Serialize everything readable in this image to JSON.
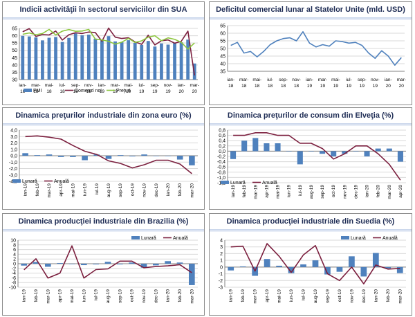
{
  "colors": {
    "bar": "#4f81bd",
    "line_primary": "#7b1f3e",
    "line_secondary": "#8dc63f",
    "line_single": "#4f81bd",
    "grid": "#d9d9d9",
    "axis": "#808080",
    "text": "#000000",
    "title": "#1f2d55"
  },
  "chart_data": [
    {
      "id": "usa-services",
      "type": "bar+line",
      "title": "Indicii activităţii în sectorul serviciilor din SUA",
      "x_labels": [
        "ian-18",
        "feb-18",
        "mar-18",
        "apr-18",
        "mai-18",
        "iun-18",
        "iul-18",
        "aug-18",
        "sep-18",
        "oct-18",
        "nov-18",
        "dec-18",
        "ian-19",
        "feb-19",
        "mar-19",
        "apr-19",
        "mai-19",
        "iun-19",
        "iul-19",
        "aug-19",
        "sep-19",
        "oct-19",
        "nov-19",
        "dec-19",
        "ian-20",
        "feb-20",
        "mar-20"
      ],
      "tick_labels": [
        "ian-18",
        "mar-18",
        "mai-18",
        "iul-18",
        "sep-18",
        "nov-18",
        "ian-19",
        "mar-19",
        "mai-19",
        "iul-19",
        "sep-19",
        "nov-19",
        "ian-20",
        "mar-20"
      ],
      "ylim": [
        30,
        65
      ],
      "yticks": [
        30,
        35,
        40,
        45,
        50,
        55,
        60,
        65
      ],
      "series": [
        {
          "name": "PMI",
          "kind": "bar",
          "values": [
            59.9,
            59.5,
            58.8,
            56.8,
            58.6,
            59.1,
            55.7,
            58.5,
            61.6,
            60.3,
            60.7,
            58.0,
            56.7,
            59.7,
            56.1,
            55.5,
            56.9,
            55.1,
            53.7,
            56.4,
            52.6,
            54.7,
            53.9,
            55.0,
            55.5,
            57.3,
            41.0
          ]
        },
        {
          "name": "Comenzi noi",
          "kind": "line",
          "color_key": "line_primary",
          "values": [
            62.7,
            64.8,
            59.5,
            60.8,
            60.5,
            63.2,
            57.0,
            60.7,
            62.0,
            61.5,
            62.5,
            62.1,
            56.2,
            65.2,
            59.0,
            58.1,
            58.6,
            55.8,
            54.1,
            60.3,
            53.7,
            56.6,
            57.1,
            54.9,
            56.2,
            63.1,
            32.9
          ]
        },
        {
          "name": "Preţuri",
          "kind": "line",
          "color_key": "line_secondary",
          "values": [
            61.0,
            61.9,
            60.7,
            61.5,
            64.3,
            60.5,
            63.1,
            64.2,
            63.0,
            63.2,
            64.3,
            57.6,
            57.1,
            56.2,
            54.2,
            55.6,
            58.2,
            55.4,
            56.5,
            59.0,
            60.0,
            56.6,
            58.5,
            57.5,
            55.5,
            50.8,
            55.0
          ]
        }
      ],
      "legend": "bottom"
    },
    {
      "id": "usa-trade",
      "type": "line",
      "title": "Deficitul comercial lunar al Statelor Unite (mld. USD)",
      "x_labels": [
        "ian-18",
        "feb-18",
        "mar-18",
        "apr-18",
        "mai-18",
        "iun-18",
        "iul-18",
        "aug-18",
        "sep-18",
        "oct-18",
        "nov-18",
        "dec-18",
        "ian-19",
        "feb-19",
        "mar-19",
        "apr-19",
        "mai-19",
        "iun-19",
        "iul-19",
        "aug-19",
        "sep-19",
        "oct-19",
        "nov-19",
        "dec-19",
        "ian-20",
        "feb-20",
        "mar-20"
      ],
      "tick_labels": [
        "ian-18",
        "mar-18",
        "mai-18",
        "iul-18",
        "sep-18",
        "nov-18",
        "ian-19",
        "mar-19",
        "mai-19",
        "iul-19",
        "sep-19",
        "nov-19",
        "ian-20",
        "mar-20"
      ],
      "ylim": [
        35,
        65
      ],
      "yticks": [
        35,
        40,
        45,
        50,
        55,
        60,
        65
      ],
      "series": [
        {
          "name": "Deficit",
          "kind": "line",
          "color_key": "line_single",
          "values": [
            52.0,
            54.0,
            47.0,
            48.0,
            44.5,
            48.0,
            52.5,
            55.0,
            56.5,
            57.0,
            55.0,
            61.0,
            53.5,
            51.0,
            52.5,
            51.5,
            55.0,
            54.5,
            53.5,
            54.0,
            52.0,
            47.0,
            43.5,
            48.5,
            45.0,
            39.0,
            44.0
          ]
        }
      ]
    },
    {
      "id": "euro-producer",
      "type": "bar+line",
      "title": "Dinamica preţurilor industriale din zona euro (%)",
      "x_labels": [
        "ian-19",
        "feb-19",
        "mar-19",
        "apr-19",
        "mai-19",
        "iun-19",
        "iul-19",
        "aug-19",
        "sep-19",
        "oct-19",
        "nov-19",
        "dec-19",
        "ian-20",
        "feb-20",
        "mar-20"
      ],
      "tick_labels": [
        "ian-19",
        "feb-19",
        "mar-19",
        "apr-19",
        "mai-19",
        "iun-19",
        "iul-19",
        "aug-19",
        "sep-19",
        "oct-19",
        "nov-19",
        "dec-19",
        "ian-20",
        "feb-20",
        "mar-20"
      ],
      "ylim": [
        -4,
        4
      ],
      "yticks": [
        -4.0,
        -3.0,
        -2.0,
        -1.0,
        0.0,
        1.0,
        2.0,
        3.0,
        4.0
      ],
      "decimals": 1,
      "series": [
        {
          "name": "Lunară",
          "kind": "bar",
          "values": [
            0.4,
            0.1,
            0.2,
            -0.2,
            -0.2,
            -0.7,
            0.2,
            -0.5,
            0.1,
            -0.1,
            0.2,
            0.0,
            0.0,
            -0.6,
            -1.5
          ]
        },
        {
          "name": "Anuală",
          "kind": "line",
          "color_key": "line_primary",
          "values": [
            3.0,
            3.1,
            2.9,
            2.6,
            1.6,
            0.7,
            0.2,
            -0.8,
            -1.2,
            -1.9,
            -1.4,
            -0.7,
            -0.7,
            -1.3,
            -2.8
          ]
        }
      ],
      "legend": "bottom-left"
    },
    {
      "id": "swiss-cpi",
      "type": "bar+line",
      "title": "Dinamica preţurilor de consum din Elveţia (%)",
      "x_labels": [
        "ian-19",
        "feb-19",
        "mar-19",
        "apr-19",
        "mai-19",
        "iun-19",
        "iul-19",
        "aug-19",
        "sep-19",
        "oct-19",
        "nov-19",
        "dec-19",
        "ian-20",
        "feb-20",
        "mar-20",
        "apr-20"
      ],
      "tick_labels": [
        "ian-19",
        "feb-19",
        "mar-19",
        "apr-19",
        "mai-19",
        "iun-19",
        "iul-19",
        "aug-19",
        "sep-19",
        "oct-19",
        "nov-19",
        "dec-19",
        "ian-20",
        "feb-20",
        "mar-20",
        "apr-20"
      ],
      "ylim": [
        -1.2,
        0.8
      ],
      "yticks": [
        -1.2,
        -1.0,
        -0.8,
        -0.6,
        -0.4,
        -0.2,
        0.0,
        0.2,
        0.4,
        0.6,
        0.8
      ],
      "decimals": 1,
      "series": [
        {
          "name": "Lunară",
          "kind": "bar",
          "values": [
            -0.3,
            0.4,
            0.5,
            0.3,
            0.3,
            0.0,
            -0.5,
            0.0,
            -0.1,
            -0.2,
            -0.1,
            0.0,
            -0.2,
            0.1,
            0.1,
            -0.4
          ]
        },
        {
          "name": "Anuală",
          "kind": "line",
          "color_key": "line_primary",
          "values": [
            0.6,
            0.6,
            0.7,
            0.7,
            0.6,
            0.6,
            0.3,
            0.3,
            0.1,
            -0.3,
            -0.1,
            0.2,
            0.2,
            -0.1,
            -0.5,
            -1.1
          ]
        }
      ],
      "legend": "bottom-left"
    },
    {
      "id": "brazil-industrial",
      "type": "bar+line",
      "title": "Dinamica producţiei industriale din Brazilia (%)",
      "x_labels": [
        "ian-19",
        "feb-19",
        "mar-19",
        "apr-19",
        "mai-19",
        "iun-19",
        "iul-19",
        "aug-19",
        "sep-19",
        "oct-19",
        "nov-19",
        "dec-19",
        "ian-20",
        "feb-20",
        "mar-20"
      ],
      "tick_labels": [
        "ian-19",
        "feb-19",
        "mar-19",
        "apr-19",
        "mai-19",
        "iun-19",
        "iul-19",
        "aug-19",
        "sep-19",
        "oct-19",
        "nov-19",
        "dec-19",
        "ian-20",
        "feb-20",
        "mar-20"
      ],
      "ylim": [
        -10,
        10
      ],
      "yticks": [
        -10,
        -8,
        -6,
        -4,
        -2,
        0,
        2,
        4,
        6,
        8,
        10
      ],
      "series": [
        {
          "name": "Lunară",
          "kind": "bar",
          "values": [
            -0.8,
            0.7,
            -1.3,
            0.3,
            -0.2,
            -0.6,
            -0.3,
            0.8,
            -0.3,
            0.5,
            -1.7,
            -0.7,
            1.1,
            0.5,
            -9.1
          ]
        },
        {
          "name": "Anuală",
          "kind": "line",
          "color_key": "line_primary",
          "values": [
            -2.6,
            2.1,
            -6.1,
            -4.0,
            7.6,
            -6.1,
            -2.5,
            -2.2,
            1.1,
            1.1,
            -1.7,
            -1.2,
            -0.9,
            -0.4,
            -3.8
          ]
        }
      ],
      "legend": "top-right"
    },
    {
      "id": "sweden-industrial",
      "type": "bar+line",
      "title": "Dinamica producţiei industriale din Suedia (%)",
      "x_labels": [
        "ian-19",
        "feb-19",
        "mar-19",
        "apr-19",
        "mai-19",
        "iun-19",
        "iul-19",
        "aug-19",
        "sep-19",
        "oct-19",
        "nov-19",
        "dec-19",
        "ian-20",
        "feb-20",
        "mar-20"
      ],
      "tick_labels": [
        "ian-19",
        "feb-19",
        "mar-19",
        "apr-19",
        "mai-19",
        "iun-19",
        "iul-19",
        "aug-19",
        "sep-19",
        "oct-19",
        "nov-19",
        "dec-19",
        "ian-20",
        "feb-20",
        "mar-20"
      ],
      "ylim": [
        -3,
        4
      ],
      "yticks": [
        -3,
        -2,
        -1,
        0,
        1,
        2,
        3,
        4
      ],
      "series": [
        {
          "name": "Lunară",
          "kind": "bar",
          "values": [
            -0.5,
            0.1,
            -1.3,
            1.2,
            0.2,
            -0.9,
            0.4,
            1.0,
            -1.1,
            -0.7,
            1.6,
            -1.4,
            2.1,
            -0.2,
            -0.9
          ]
        },
        {
          "name": "Anuală",
          "kind": "line",
          "color_key": "line_primary",
          "values": [
            3.0,
            3.1,
            -0.6,
            3.5,
            1.6,
            -0.8,
            1.8,
            3.2,
            -1.0,
            -2.0,
            0.0,
            -2.5,
            0.3,
            -0.3,
            -0.2
          ]
        }
      ],
      "legend": "top-right"
    }
  ]
}
